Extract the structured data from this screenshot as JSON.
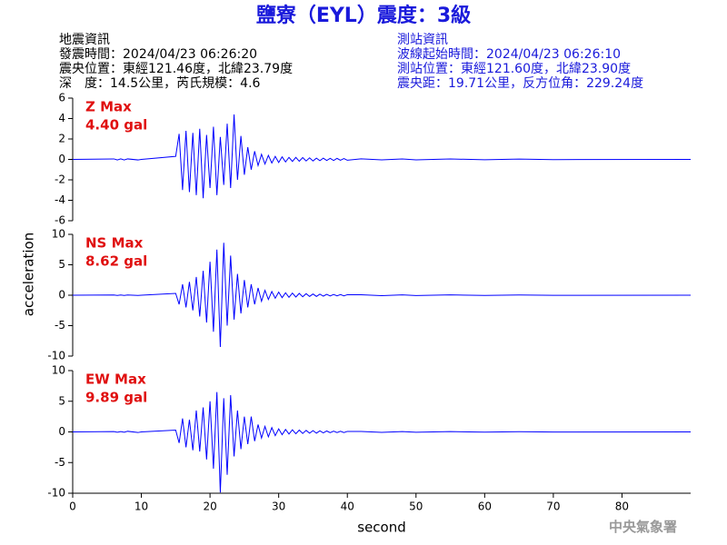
{
  "header": {
    "title": "鹽寮（EYL）震度：3級",
    "event_info": [
      "地震資訊",
      "發震時間：2024/04/23 06:26:20",
      "震央位置：東經121.46度，北緯23.79度",
      "深　度：14.5公里，芮氏規模：4.6"
    ],
    "station_info": [
      "測站資訊",
      "波線起始時間：2024/04/23 06:26:10",
      "測站位置：東經121.60度，北緯23.90度",
      "震央距：19.71公里，反方位角：229.24度"
    ],
    "agency": "中央氣象署"
  },
  "chart_data": [
    {
      "type": "line",
      "annotation": [
        "Z Max",
        "4.40 gal"
      ],
      "xlim": [
        0,
        90
      ],
      "ylim": [
        -6,
        6
      ],
      "yticks": [
        -6,
        -4,
        -2,
        0,
        2,
        4,
        6
      ],
      "x": [
        0,
        6,
        6.5,
        7,
        7.5,
        8,
        9.5,
        10,
        15,
        15.5,
        16,
        16.5,
        17,
        17.5,
        18,
        18.5,
        19,
        19.5,
        20,
        20.5,
        21,
        21.5,
        22,
        22.5,
        23,
        23.5,
        24,
        24.5,
        25,
        25.5,
        26,
        26.5,
        27,
        27.5,
        28,
        28.5,
        29,
        29.5,
        30,
        30.5,
        31,
        31.5,
        32,
        32.5,
        33,
        33.5,
        34,
        34.5,
        35,
        35.5,
        36,
        36.5,
        37,
        37.5,
        38,
        38.5,
        39,
        39.5,
        40,
        42,
        45,
        48,
        50,
        55,
        60,
        65,
        70,
        90
      ],
      "series": [
        {
          "color": "#0000ff",
          "values": [
            0,
            0.05,
            -0.05,
            0.05,
            -0.05,
            0.05,
            -0.05,
            0,
            0.3,
            2.5,
            -3,
            2.8,
            -3.2,
            2.6,
            -3.5,
            3,
            -3.8,
            2.4,
            -2.8,
            3.2,
            -3.5,
            2.2,
            -2.5,
            3.5,
            -2.8,
            4.4,
            -2,
            2.3,
            -1.5,
            1.2,
            -1,
            0.8,
            -0.6,
            0.5,
            -0.45,
            0.4,
            -0.35,
            0.3,
            -0.3,
            0.25,
            -0.25,
            0.2,
            -0.2,
            0.2,
            -0.18,
            0.18,
            -0.15,
            0.15,
            -0.15,
            0.12,
            -0.12,
            0.12,
            -0.1,
            0.1,
            -0.1,
            0.1,
            -0.08,
            0.08,
            -0.08,
            0.06,
            -0.05,
            0.05,
            -0.04,
            0.04,
            -0.03,
            0.03,
            -0.02,
            0
          ]
        }
      ]
    },
    {
      "type": "line",
      "annotation": [
        "NS Max",
        "8.62 gal"
      ],
      "ylabel": "acceleration",
      "xlim": [
        0,
        90
      ],
      "ylim": [
        -10,
        10
      ],
      "yticks": [
        -10,
        -5,
        0,
        5,
        10
      ],
      "x": [
        0,
        6,
        6.5,
        7,
        7.5,
        8,
        9.5,
        10,
        15,
        15.5,
        16,
        16.5,
        17,
        17.5,
        18,
        18.5,
        19,
        19.5,
        20,
        20.5,
        21,
        21.5,
        22,
        22.5,
        23,
        23.5,
        24,
        24.5,
        25,
        25.5,
        26,
        26.5,
        27,
        27.5,
        28,
        28.5,
        29,
        29.5,
        30,
        30.5,
        31,
        31.5,
        32,
        32.5,
        33,
        33.5,
        34,
        34.5,
        35,
        35.5,
        36,
        36.5,
        37,
        37.5,
        38,
        38.5,
        39,
        39.5,
        40,
        42,
        45,
        48,
        50,
        55,
        60,
        65,
        70,
        90
      ],
      "series": [
        {
          "color": "#0000ff",
          "values": [
            0,
            0.03,
            -0.03,
            0.03,
            -0.03,
            0.03,
            -0.03,
            0,
            0.3,
            -1.5,
            1.8,
            -2,
            2.2,
            -2.5,
            3,
            -3.5,
            4,
            -4.5,
            5.5,
            -6,
            7.5,
            -8.5,
            8.62,
            -5,
            6.5,
            -4,
            3.5,
            -3,
            2.5,
            -2,
            1.8,
            -1.5,
            1.2,
            -1,
            0.8,
            -0.7,
            0.6,
            -0.5,
            0.5,
            -0.4,
            0.4,
            -0.35,
            0.35,
            -0.3,
            0.3,
            -0.25,
            0.25,
            -0.2,
            0.2,
            -0.2,
            0.18,
            -0.15,
            0.15,
            -0.12,
            0.12,
            -0.1,
            0.1,
            -0.1,
            0.08,
            0.08,
            -0.07,
            0.06,
            -0.05,
            0.05,
            -0.04,
            0.03,
            -0.02,
            0
          ]
        }
      ]
    },
    {
      "type": "line",
      "annotation": [
        "EW Max",
        "9.89 gal"
      ],
      "xlabel": "second",
      "xlim": [
        0,
        90
      ],
      "ylim": [
        -10,
        10
      ],
      "yticks": [
        -10,
        -5,
        0,
        5,
        10
      ],
      "xticks": [
        0,
        10,
        20,
        30,
        40,
        50,
        60,
        70,
        80
      ],
      "x": [
        0,
        6,
        6.5,
        7,
        7.5,
        8,
        9.5,
        10,
        15,
        15.5,
        16,
        16.5,
        17,
        17.5,
        18,
        18.5,
        19,
        19.5,
        20,
        20.5,
        21,
        21.5,
        22,
        22.5,
        23,
        23.5,
        24,
        24.5,
        25,
        25.5,
        26,
        26.5,
        27,
        27.5,
        28,
        28.5,
        29,
        29.5,
        30,
        30.5,
        31,
        31.5,
        32,
        32.5,
        33,
        33.5,
        34,
        34.5,
        35,
        35.5,
        36,
        36.5,
        37,
        37.5,
        38,
        38.5,
        39,
        39.5,
        40,
        42,
        45,
        48,
        50,
        55,
        60,
        65,
        70,
        90
      ],
      "series": [
        {
          "color": "#0000ff",
          "values": [
            0,
            0.05,
            -0.05,
            0.05,
            -0.05,
            0.1,
            -0.1,
            0,
            0.3,
            -1.8,
            2.2,
            -2.5,
            2,
            -3,
            3.5,
            -3.2,
            4,
            -4.5,
            5,
            -6,
            6.5,
            -9.89,
            5.5,
            -7,
            6,
            -4,
            3.5,
            -2.8,
            2.5,
            -2,
            2.5,
            -1.5,
            1.2,
            -1,
            0.9,
            -0.8,
            0.7,
            -0.6,
            0.5,
            -0.45,
            0.4,
            -0.35,
            0.35,
            -0.3,
            0.3,
            -0.25,
            0.25,
            -0.2,
            0.2,
            -0.2,
            0.18,
            -0.15,
            0.15,
            -0.12,
            0.12,
            -0.1,
            0.1,
            -0.1,
            0.08,
            0.08,
            -0.07,
            0.06,
            -0.05,
            0.05,
            -0.04,
            0.03,
            -0.02,
            0
          ]
        }
      ]
    }
  ]
}
